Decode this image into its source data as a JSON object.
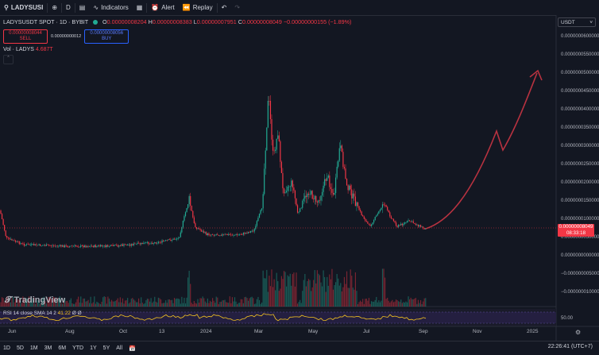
{
  "topbar": {
    "symbol": "LADYSUSI",
    "interval": "D",
    "indicators": "Indicators",
    "alert": "Alert",
    "replay": "Replay"
  },
  "legend": {
    "title": "LADYSUSDT SPOT · 1D · BYBIT",
    "o_label": "O",
    "o": "0.00000008204",
    "h_label": "H",
    "h": "0.00000008383",
    "l_label": "L",
    "l": "0.00000007951",
    "c_label": "C",
    "c": "0.00000008049",
    "change": "−0.00000000155 (−1.89%)"
  },
  "trade": {
    "sell_price": "0.00000008044",
    "sell_label": "SELL",
    "spread": "0.00000000012",
    "buy_price": "0.00000008056",
    "buy_label": "BUY"
  },
  "volume": {
    "label": "Vol · LADYS",
    "value": "4.687T"
  },
  "axis": {
    "currency": "USDT",
    "price_labels": [
      "0.0000000600000",
      "0.0000000550000",
      "0.0000000500000",
      "0.0000000450000",
      "0.0000000400000",
      "0.0000000350000",
      "0.0000000300000",
      "0.0000000250000",
      "0.0000000200000",
      "0.0000000150000",
      "0.0000000100000",
      "0.0000000050000",
      "0.0000000000000",
      "−0.0000000050000",
      "−0.0000000100000"
    ],
    "current_price": "0.00000008049",
    "countdown": "08:33:18"
  },
  "time_labels": [
    "Jun",
    "Aug",
    "Oct",
    "13",
    "2024",
    "Mar",
    "May",
    "Jul",
    "Sep",
    "Nov",
    "2025"
  ],
  "rsi": {
    "label": "RSI 14 close SMA 14 2",
    "v1": "41.22",
    "v2": "Ø",
    "v3": "Ø",
    "axis_value": "50.00"
  },
  "watermark": "TradingView",
  "bottombar": {
    "ranges": [
      "1D",
      "5D",
      "1M",
      "3M",
      "6M",
      "YTD",
      "1Y",
      "5Y",
      "All"
    ],
    "clock": "22:26:41 (UTC+7)"
  },
  "colors": {
    "up": "#22ab94",
    "down": "#f23645",
    "bg": "#131722",
    "arrow": "#b83240"
  }
}
